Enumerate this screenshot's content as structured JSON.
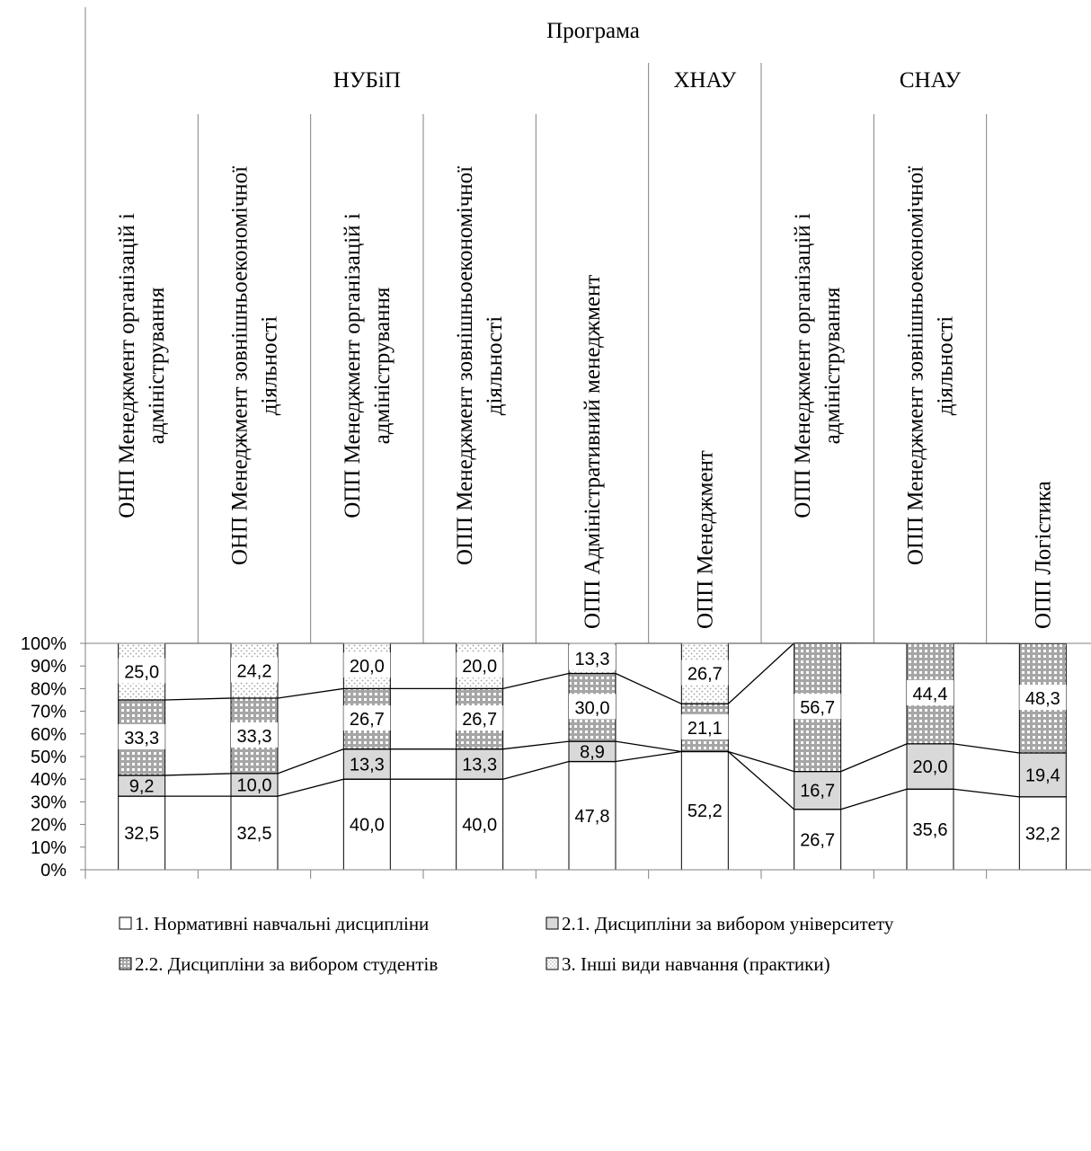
{
  "chart_data": {
    "type": "stacked_bar",
    "header_title": "Програма",
    "groups": [
      {
        "name": "НУБіП",
        "span": 5
      },
      {
        "name": "ХНАУ",
        "span": 1
      },
      {
        "name": "СНАУ",
        "span": 3
      }
    ],
    "categories": [
      [
        "ОНП Менеджмент організацій і",
        "адміністрування"
      ],
      [
        "ОНП Менеджмент зовнішньоекономічної",
        "діяльності"
      ],
      [
        "ОПП Менеджмент організацій і",
        "адміністрування"
      ],
      [
        "ОПП Менеджмент зовнішньоекономічної",
        "діяльності"
      ],
      [
        "ОПП Адміністративний менеджмент"
      ],
      [
        "ОПП Менеджмент"
      ],
      [
        "ОПП Менеджмент організацій і",
        "адміністрування"
      ],
      [
        "ОПП Менеджмент зовнішньоекономічної",
        "діяльності"
      ],
      [
        "ОПП Логістика"
      ]
    ],
    "series": [
      {
        "name": "1. Нормативні навчальні дисципліни",
        "pattern": "blank",
        "values": [
          32.5,
          32.5,
          40.0,
          40.0,
          47.8,
          52.2,
          26.7,
          35.6,
          32.2
        ],
        "labels": [
          "32,5",
          "32,5",
          "40,0",
          "40,0",
          "47,8",
          "52,2",
          "26,7",
          "35,6",
          "32,2"
        ]
      },
      {
        "name": "2.1. Дисципліни за вибором університету",
        "pattern": "gray",
        "values": [
          9.2,
          10.0,
          13.3,
          13.3,
          8.9,
          0,
          16.7,
          20.0,
          19.4
        ],
        "labels": [
          "9,2",
          "10,0",
          "13,3",
          "13,3",
          "8,9",
          "",
          "16,7",
          "20,0",
          "19,4"
        ]
      },
      {
        "name": "2.2. Дисципліни за вибором студентів",
        "pattern": "grid",
        "values": [
          33.3,
          33.3,
          26.7,
          26.7,
          30.0,
          21.1,
          56.7,
          44.4,
          48.3
        ],
        "labels": [
          "33,3",
          "33,3",
          "26,7",
          "26,7",
          "30,0",
          "21,1",
          "56,7",
          "44,4",
          "48,3"
        ]
      },
      {
        "name": "3. Інші види навчання (практики)",
        "pattern": "dots",
        "values": [
          25.0,
          24.2,
          20.0,
          20.0,
          13.3,
          26.7,
          0,
          0,
          0
        ],
        "labels": [
          "25,0",
          "24,2",
          "20,0",
          "20,0",
          "13,3",
          "26,7",
          "",
          "",
          ""
        ]
      }
    ],
    "y_ticks": [
      "0%",
      "10%",
      "20%",
      "30%",
      "40%",
      "50%",
      "60%",
      "70%",
      "80%",
      "90%",
      "100%"
    ],
    "ylim": [
      0,
      100
    ],
    "legend_position": "bottom",
    "colors": {
      "gray": "#d9d9d9",
      "grid_line": "#a6a6a6",
      "dots": "#a0a0a0",
      "axis": "#808080"
    }
  }
}
